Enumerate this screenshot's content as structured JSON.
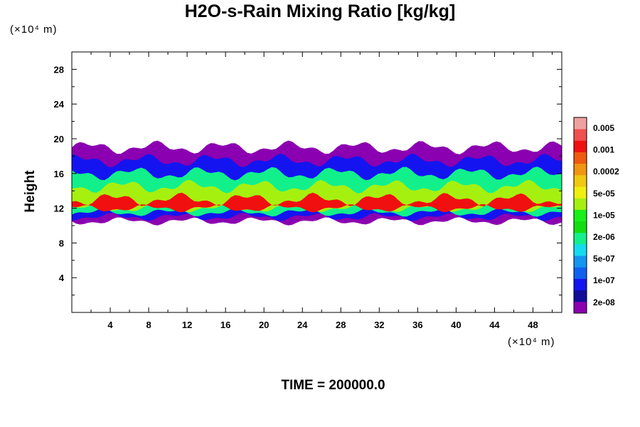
{
  "chart_data": {
    "type": "heatmap",
    "title": "H2O-s-Rain Mixing Ratio [kg/kg]",
    "ylabel": "Height",
    "x_unit": "(×10⁴ m)",
    "y_unit": "(×10⁴ m)",
    "time_label": "TIME = 200000.0",
    "xlim": [
      0,
      51
    ],
    "ylim": [
      0,
      30
    ],
    "x_ticks": [
      4,
      8,
      12,
      16,
      20,
      24,
      28,
      32,
      36,
      40,
      44,
      48
    ],
    "y_ticks": [
      4,
      8,
      12,
      16,
      20,
      24,
      28
    ],
    "colorbar": {
      "labels": [
        "0.005",
        "0.001",
        "0.0002",
        "5e-05",
        "1e-05",
        "2e-06",
        "5e-07",
        "1e-07",
        "2e-08"
      ],
      "colors": [
        "#8B00B0",
        "#120E9A",
        "#1414F0",
        "#1060F0",
        "#1296F0",
        "#14DCF0",
        "#12F08C",
        "#10DE10",
        "#18F018",
        "#A6F010",
        "#F0F010",
        "#F0C810",
        "#F09610",
        "#F05A10",
        "#F01010",
        "#F05050",
        "#F0A0A0"
      ]
    },
    "layers": [
      {
        "level": "2e-08",
        "color": "#8B00B0",
        "y_bottom": 10.5,
        "y_top": 19.0
      },
      {
        "level": "1e-07",
        "color": "#1414F0",
        "y_bottom": 11.0,
        "y_top": 17.5
      },
      {
        "level": "2e-06",
        "color": "#12F08C",
        "y_bottom": 11.5,
        "y_top": 16.0
      },
      {
        "level": "5e-05",
        "color": "#A6F010",
        "y_bottom": 12.0,
        "y_top": 14.5
      },
      {
        "level": "0.001",
        "color": "#F01010",
        "y_bottom": 12.0,
        "y_top": 13.0
      }
    ]
  }
}
